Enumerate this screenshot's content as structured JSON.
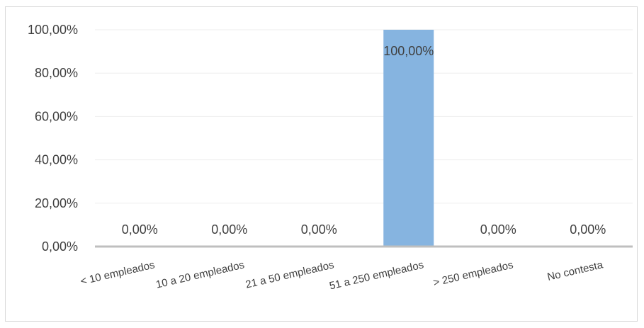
{
  "chart_data": {
    "type": "bar",
    "categories": [
      "< 10 empleados",
      "10 a 20 empleados",
      "21 a 50 empleados",
      "51 a 250 empleados",
      "> 250 empleados",
      "No contesta"
    ],
    "values": [
      0,
      0,
      0,
      100,
      0,
      0
    ],
    "data_labels": [
      "0,00%",
      "0,00%",
      "0,00%",
      "100,00%",
      "0,00%",
      "0,00%"
    ],
    "y_ticks": [
      "0,00%",
      "20,00%",
      "40,00%",
      "60,00%",
      "80,00%",
      "100,00%"
    ],
    "ylim": [
      0,
      100
    ],
    "grid": true,
    "bar_color": "#86b4e0",
    "title": "",
    "xlabel": "",
    "ylabel": ""
  }
}
